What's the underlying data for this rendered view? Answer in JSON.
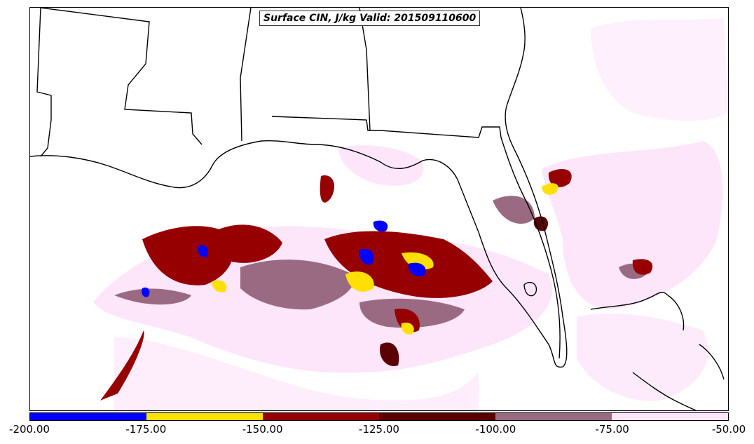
{
  "title": "Surface CIN, J/kg Valid: 201509110600",
  "colorbar": {
    "segments": [
      {
        "from": -200,
        "to": -175,
        "color": "#0000ff"
      },
      {
        "from": -175,
        "to": -150,
        "color": "#ffe000"
      },
      {
        "from": -150,
        "to": -125,
        "color": "#960000"
      },
      {
        "from": -125,
        "to": -100,
        "color": "#5a0000"
      },
      {
        "from": -100,
        "to": -75,
        "color": "#9a6a82"
      },
      {
        "from": -75,
        "to": -50,
        "color": "#fde6fa"
      }
    ],
    "tick_labels": [
      "-200.00",
      "-175.00",
      "-150.00",
      "-125.00",
      "-100.00",
      "-75.00",
      "-50.00"
    ]
  }
}
